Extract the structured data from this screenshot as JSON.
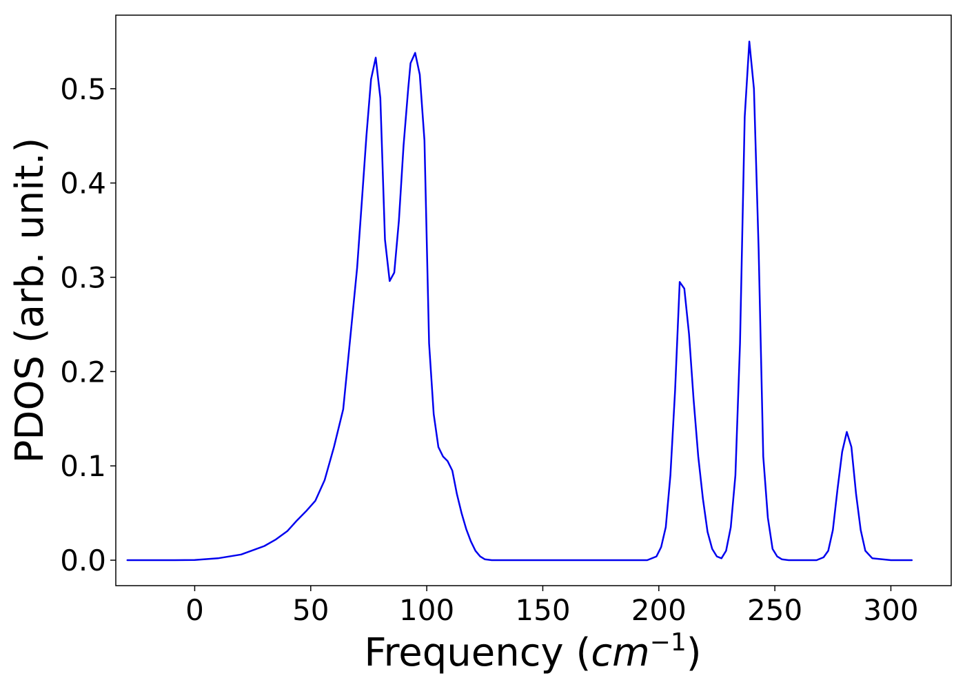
{
  "chart_data": {
    "type": "line",
    "title": "",
    "xlabel": "Frequency (cm⁻¹)",
    "xlabel_text": "Frequency (",
    "xlabel_unit": "cm",
    "xlabel_exp": "−1",
    "xlabel_close": ")",
    "ylabel": "PDOS (arb. unit.)",
    "xlim": [
      -34,
      326
    ],
    "ylim": [
      -0.027,
      0.578
    ],
    "xticks": [
      0,
      50,
      100,
      150,
      200,
      250,
      300
    ],
    "xtick_labels": [
      "0",
      "50",
      "100",
      "150",
      "200",
      "250",
      "300"
    ],
    "yticks": [
      0.0,
      0.1,
      0.2,
      0.3,
      0.4,
      0.5
    ],
    "ytick_labels": [
      "0.0",
      "0.1",
      "0.2",
      "0.3",
      "0.4",
      "0.5"
    ],
    "grid": false,
    "legend": "none",
    "series": [
      {
        "color": "#0000ee",
        "x": [
          -29,
          -10,
          0,
          10,
          20,
          30,
          35,
          40,
          44,
          48,
          52,
          56,
          60,
          64,
          66,
          68,
          70,
          72,
          74,
          76,
          78,
          80,
          82,
          84,
          86,
          88,
          90,
          92,
          93,
          95,
          97,
          99,
          101,
          103,
          105,
          107,
          109,
          111,
          113,
          115,
          117,
          119,
          121,
          123,
          125,
          128,
          140,
          160,
          180,
          195,
          199,
          201,
          203,
          205,
          207,
          209,
          211,
          213,
          215,
          217,
          219,
          221,
          223,
          225,
          227,
          229,
          231,
          233,
          235,
          237,
          239,
          241,
          243,
          245,
          247,
          249,
          251,
          253,
          256,
          260,
          268,
          271,
          273,
          275,
          277,
          279,
          281,
          283,
          285,
          287,
          289,
          292,
          300,
          309
        ],
        "y": [
          0.0,
          0.0,
          0.0002,
          0.002,
          0.006,
          0.015,
          0.022,
          0.031,
          0.042,
          0.052,
          0.063,
          0.085,
          0.12,
          0.16,
          0.21,
          0.26,
          0.31,
          0.38,
          0.45,
          0.51,
          0.533,
          0.49,
          0.34,
          0.296,
          0.305,
          0.36,
          0.44,
          0.5,
          0.527,
          0.538,
          0.515,
          0.445,
          0.23,
          0.155,
          0.12,
          0.11,
          0.105,
          0.095,
          0.07,
          0.05,
          0.033,
          0.02,
          0.01,
          0.004,
          0.001,
          0.0,
          0.0,
          0.0,
          0.0,
          0.0,
          0.004,
          0.014,
          0.035,
          0.09,
          0.18,
          0.295,
          0.288,
          0.24,
          0.17,
          0.11,
          0.065,
          0.03,
          0.012,
          0.004,
          0.002,
          0.01,
          0.035,
          0.09,
          0.23,
          0.47,
          0.55,
          0.5,
          0.33,
          0.11,
          0.045,
          0.012,
          0.004,
          0.001,
          0.0,
          0.0,
          0.0,
          0.003,
          0.01,
          0.032,
          0.075,
          0.115,
          0.136,
          0.12,
          0.07,
          0.032,
          0.01,
          0.002,
          0.0,
          0.0
        ]
      }
    ]
  }
}
